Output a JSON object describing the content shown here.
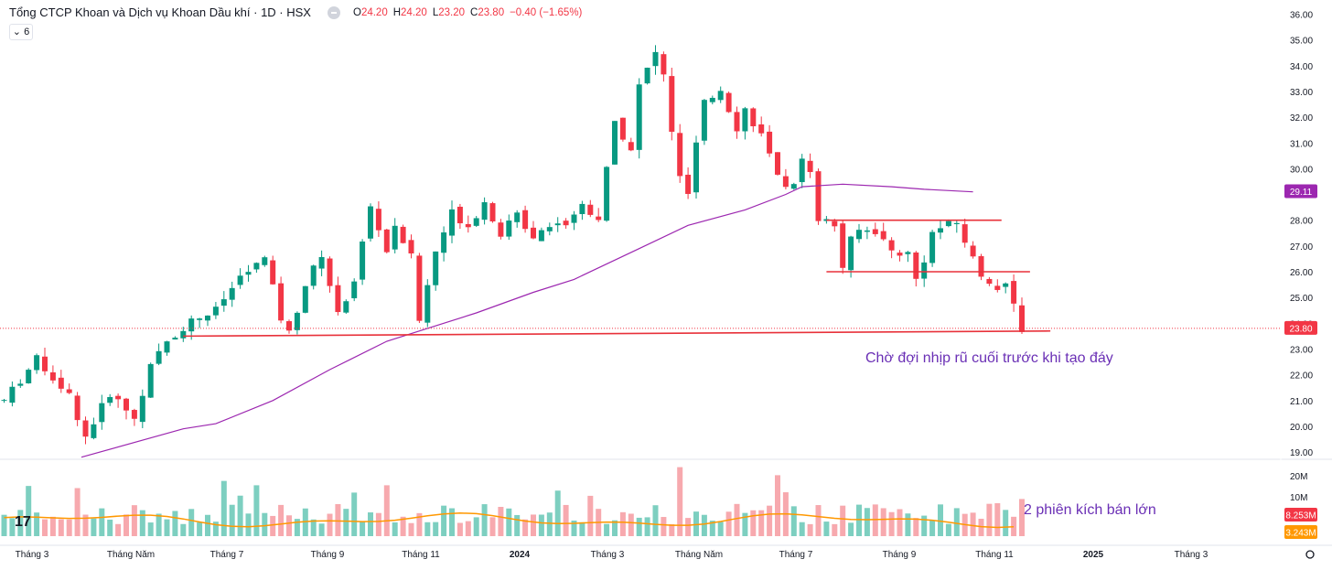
{
  "header": {
    "title": "Tổng CTCP Khoan và Dịch vụ Khoan Dầu khí · 1D · HSX",
    "open_label": "O",
    "open": "24.20",
    "high_label": "H",
    "high": "24.20",
    "low_label": "L",
    "low": "23.20",
    "close_label": "C",
    "close": "23.80",
    "change": "−0.40 (−1.65%)"
  },
  "indicator_button": {
    "label": "6",
    "icon": "chevron-down-icon"
  },
  "logo_text": "17",
  "colors": {
    "up": "#089981",
    "down": "#f23645",
    "ma": "#9c27b0",
    "volume_ma": "#ff9800",
    "annotation": "#6a2fb5"
  },
  "chart_data": {
    "type": "candlestick",
    "price_axis": {
      "ticks": [
        "36.00",
        "35.00",
        "34.00",
        "33.00",
        "32.00",
        "31.00",
        "30.00",
        "29.00",
        "28.00",
        "27.00",
        "26.00",
        "25.00",
        "24.00",
        "23.00",
        "22.00",
        "21.00",
        "20.00",
        "19.00"
      ],
      "range": [
        19,
        36
      ]
    },
    "volume_axis": {
      "ticks": [
        "20M",
        "10M"
      ]
    },
    "x_axis": {
      "ticks": [
        "Tháng 3",
        "Tháng Năm",
        "Tháng 7",
        "Tháng 9",
        "Tháng 11",
        "2024",
        "Tháng 3",
        "Tháng Năm",
        "Tháng 7",
        "Tháng 9",
        "Tháng 11",
        "2025",
        "Tháng 3"
      ]
    },
    "last_price": "23.80",
    "ma_label": "29.11",
    "volume_label": "8.253M",
    "volume_ma_label": "3.243M",
    "price_path": [
      [
        0,
        21.0
      ],
      [
        4,
        22.6
      ],
      [
        8,
        21.2
      ],
      [
        10,
        19.6
      ],
      [
        13,
        21.3
      ],
      [
        16,
        20.3
      ],
      [
        18,
        22.3
      ],
      [
        20,
        23.3
      ],
      [
        23,
        24.1
      ],
      [
        26,
        24.5
      ],
      [
        29,
        25.8
      ],
      [
        32,
        26.5
      ],
      [
        34,
        24.2
      ],
      [
        35,
        23.6
      ],
      [
        37,
        25.5
      ],
      [
        39,
        26.7
      ],
      [
        41,
        24.3
      ],
      [
        43,
        25.7
      ],
      [
        45,
        28.5
      ],
      [
        47,
        26.8
      ],
      [
        48,
        27.8
      ],
      [
        50,
        26.6
      ],
      [
        51,
        24.1
      ],
      [
        53,
        26.8
      ],
      [
        55,
        28.3
      ],
      [
        57,
        27.8
      ],
      [
        59,
        28.7
      ],
      [
        61,
        27.5
      ],
      [
        63,
        28.2
      ],
      [
        65,
        27.4
      ],
      [
        67,
        27.9
      ],
      [
        69,
        27.9
      ],
      [
        71,
        28.6
      ],
      [
        73,
        28.1
      ],
      [
        75,
        31.8
      ],
      [
        77,
        30.8
      ],
      [
        78,
        33.2
      ],
      [
        80,
        34.5
      ],
      [
        81,
        33.6
      ],
      [
        82,
        31.5
      ],
      [
        83,
        29.6
      ],
      [
        84,
        29.0
      ],
      [
        85,
        30.9
      ],
      [
        86,
        32.5
      ],
      [
        88,
        33.1
      ],
      [
        90,
        31.6
      ],
      [
        91,
        32.3
      ],
      [
        92,
        31.8
      ],
      [
        93,
        31.3
      ],
      [
        95,
        29.6
      ],
      [
        97,
        29.3
      ],
      [
        98,
        30.4
      ],
      [
        99,
        30.0
      ],
      [
        100,
        28.1
      ],
      [
        102,
        27.8
      ],
      [
        103,
        26.2
      ],
      [
        104,
        27.2
      ],
      [
        105,
        27.6
      ],
      [
        107,
        27.6
      ],
      [
        109,
        26.8
      ],
      [
        111,
        26.7
      ],
      [
        112,
        25.7
      ],
      [
        113,
        26.5
      ],
      [
        114,
        27.5
      ],
      [
        115,
        27.7
      ],
      [
        117,
        27.9
      ],
      [
        118,
        27.2
      ],
      [
        119,
        26.5
      ],
      [
        120,
        25.9
      ],
      [
        121,
        25.7
      ],
      [
        122,
        25.3
      ],
      [
        123,
        25.4
      ],
      [
        124,
        24.7
      ],
      [
        125,
        23.8
      ]
    ],
    "ma200": [
      [
        9.5,
        18.8
      ],
      [
        22,
        19.9
      ],
      [
        26,
        20.1
      ],
      [
        33,
        21.0
      ],
      [
        40,
        22.2
      ],
      [
        47,
        23.3
      ],
      [
        52,
        23.8
      ],
      [
        58,
        24.4
      ],
      [
        65,
        25.2
      ],
      [
        70,
        25.7
      ],
      [
        78,
        26.9
      ],
      [
        84,
        27.8
      ],
      [
        91,
        28.4
      ],
      [
        96,
        29.0
      ],
      [
        98,
        29.3
      ],
      [
        103,
        29.4
      ],
      [
        109,
        29.3
      ],
      [
        113,
        29.2
      ],
      [
        119,
        29.1
      ]
    ],
    "annotations": {
      "text1": "Chờ đợi nhịp rũ cuối trước khi tạo đáy",
      "text2": "2 phiên kích bán lớn",
      "lines": [
        {
          "from": [
            22,
            23.5
          ],
          "to": [
            128.5,
            23.7
          ]
        },
        {
          "from": [
            101,
            28.0
          ],
          "to": [
            122.5,
            28.0
          ]
        },
        {
          "from": [
            101,
            26.0
          ],
          "to": [
            126,
            26.0
          ]
        }
      ]
    }
  }
}
